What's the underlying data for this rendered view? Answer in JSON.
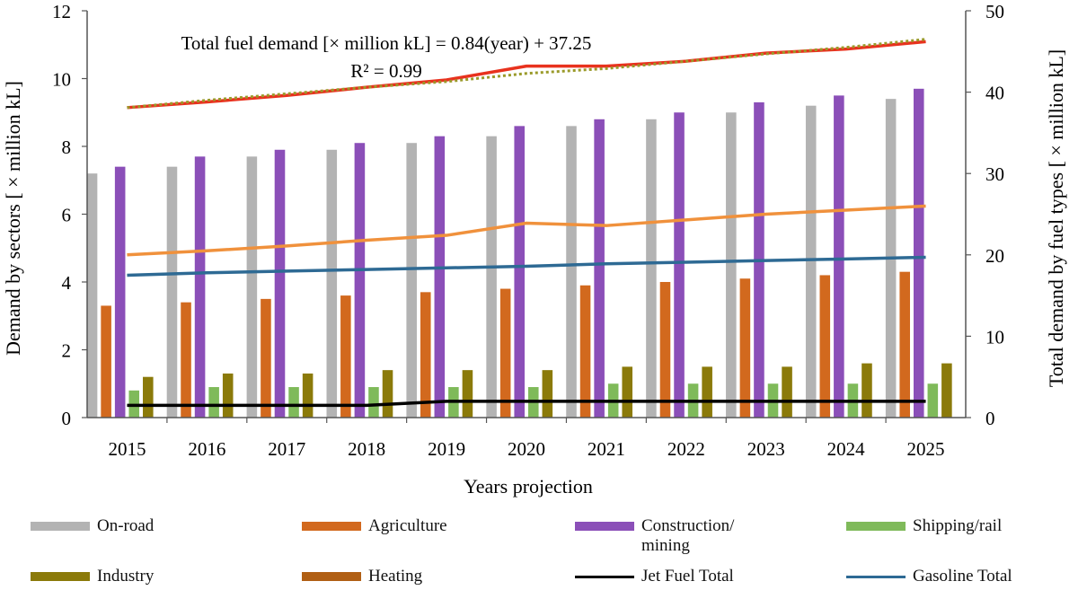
{
  "chart_data": {
    "type": "bar",
    "categories": [
      "2015",
      "2016",
      "2017",
      "2018",
      "2019",
      "2020",
      "2021",
      "2022",
      "2023",
      "2024",
      "2025"
    ],
    "xlabel": "Years projection",
    "ylabel": "Demand by sectors [ × million kL]",
    "y2label": "Total demand by fuel types [ × million kL]",
    "ylim": [
      0,
      12
    ],
    "yticks": [
      "0",
      "2",
      "4",
      "6",
      "8",
      "10",
      "12"
    ],
    "y2lim": [
      0,
      50
    ],
    "y2ticks": [
      "0",
      "10",
      "20",
      "30",
      "40",
      "50"
    ],
    "annotation_line1": "Total fuel demand [× million kL] = 0.84(year) + 37.25",
    "annotation_line2": "R² = 0.99",
    "bar_series": [
      {
        "name": "On-road",
        "color": "#b3b3b3",
        "values": [
          7.2,
          7.4,
          7.7,
          7.9,
          8.1,
          8.3,
          8.6,
          8.8,
          9.0,
          9.2,
          9.4
        ]
      },
      {
        "name": "Agriculture",
        "color": "#d2691e",
        "values": [
          3.3,
          3.4,
          3.5,
          3.6,
          3.7,
          3.8,
          3.9,
          4.0,
          4.1,
          4.2,
          4.3
        ]
      },
      {
        "name": "Construction/ mining",
        "color": "#8b4fb8",
        "values": [
          7.4,
          7.7,
          7.9,
          8.1,
          8.3,
          8.6,
          8.8,
          9.0,
          9.3,
          9.5,
          9.7
        ]
      },
      {
        "name": "Shipping/rail",
        "color": "#7fba5a",
        "values": [
          0.8,
          0.9,
          0.9,
          0.9,
          0.9,
          0.9,
          1.0,
          1.0,
          1.0,
          1.0,
          1.0
        ]
      },
      {
        "name": "Industry",
        "color": "#8b7a0a",
        "values": [
          1.2,
          1.3,
          1.3,
          1.4,
          1.4,
          1.4,
          1.5,
          1.5,
          1.5,
          1.6,
          1.6
        ]
      },
      {
        "name": "Heating",
        "color": "#b05f14",
        "values": [
          0,
          0,
          0,
          0,
          0,
          0,
          0,
          0,
          0,
          0,
          0
        ]
      }
    ],
    "line_series": [
      {
        "name": "Total (red)",
        "color": "#e8321e",
        "axis": "right",
        "values": [
          38.1,
          38.8,
          39.6,
          40.6,
          41.5,
          43.2,
          43.2,
          43.8,
          44.8,
          45.3,
          46.2
        ]
      },
      {
        "name": "Trend (dotted)",
        "color": "#9a9a2a",
        "axis": "right",
        "dotted": true,
        "values": [
          38.1,
          39.0,
          39.8,
          40.6,
          41.3,
          42.3,
          42.9,
          43.8,
          44.7,
          45.5,
          46.5
        ]
      },
      {
        "name": "Orange total",
        "color": "#f0913c",
        "axis": "right",
        "values": [
          20.0,
          20.5,
          21.1,
          21.8,
          22.4,
          23.9,
          23.6,
          24.3,
          25.0,
          25.5,
          26.0
        ]
      },
      {
        "name": "Gasoline Total",
        "color": "#2e6a94",
        "axis": "right",
        "values": [
          17.5,
          17.8,
          18.0,
          18.2,
          18.4,
          18.6,
          18.9,
          19.1,
          19.3,
          19.5,
          19.7
        ]
      },
      {
        "name": "Jet Fuel Total",
        "color": "#000000",
        "axis": "right",
        "values": [
          1.5,
          1.5,
          1.5,
          1.5,
          2.0,
          2.0,
          2.0,
          2.0,
          2.0,
          2.0,
          2.0
        ]
      }
    ]
  },
  "legend": [
    {
      "label": "On-road",
      "color": "#b3b3b3",
      "kind": "bar"
    },
    {
      "label": "Agriculture",
      "color": "#d2691e",
      "kind": "bar"
    },
    {
      "label": "Construction/ mining",
      "color": "#8b4fb8",
      "kind": "bar"
    },
    {
      "label": "Shipping/rail",
      "color": "#7fba5a",
      "kind": "bar"
    },
    {
      "label": "Industry",
      "color": "#8b7a0a",
      "kind": "bar"
    },
    {
      "label": "Heating",
      "color": "#b05f14",
      "kind": "bar"
    },
    {
      "label": "Jet Fuel Total",
      "color": "#000000",
      "kind": "line"
    },
    {
      "label": "Gasoline Total",
      "color": "#2e6a94",
      "kind": "line"
    }
  ]
}
